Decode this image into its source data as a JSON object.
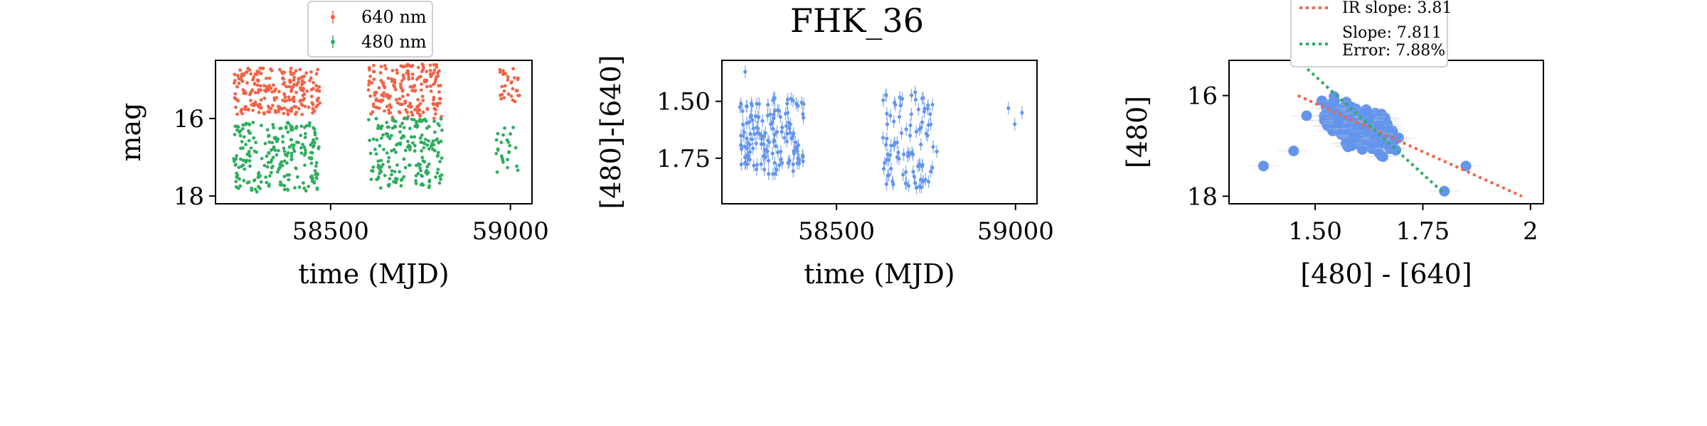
{
  "figure": {
    "title": "FHK_36"
  },
  "colors": {
    "red": "#f26347",
    "green": "#2fad5f",
    "blue": "#6495ed",
    "axis": "#000000"
  },
  "chart_data": [
    {
      "type": "scatter",
      "xlabel": "time (MJD)",
      "ylabel": "mag",
      "xlim": [
        58180,
        59060
      ],
      "ylim": [
        18.2,
        14.5
      ],
      "y_inverted": true,
      "xticks": [
        58500,
        59000
      ],
      "yticks": [
        16,
        18
      ],
      "legend_position": "top-center (outside axes)",
      "series": [
        {
          "name": "640 nm",
          "color": "#f26347",
          "clusters": [
            {
              "x_range": [
                58230,
                58470
              ],
              "y_range": [
                14.7,
                15.9
              ],
              "count": 230
            },
            {
              "x_range": [
                58605,
                58810
              ],
              "y_range": [
                14.6,
                16.0
              ],
              "count": 190
            },
            {
              "x_range": [
                58970,
                59025
              ],
              "y_range": [
                14.7,
                15.6
              ],
              "count": 30
            }
          ],
          "points": [
            [
              58455,
              15.8
            ],
            [
              58460,
              15.7
            ],
            [
              58470,
              15.6
            ]
          ]
        },
        {
          "name": "480 nm",
          "color": "#2fad5f",
          "clusters": [
            {
              "x_range": [
                58230,
                58470
              ],
              "y_range": [
                16.1,
                17.9
              ],
              "count": 230
            },
            {
              "x_range": [
                58605,
                58810
              ],
              "y_range": [
                16.0,
                17.8
              ],
              "count": 190
            },
            {
              "x_range": [
                58960,
                59025
              ],
              "y_range": [
                16.2,
                17.4
              ],
              "count": 25
            }
          ],
          "points": [
            [
              58235,
              16.2
            ],
            [
              58240,
              16.3
            ],
            [
              58735,
              16.2
            ]
          ]
        }
      ]
    },
    {
      "type": "scatter",
      "xlabel": "time (MJD)",
      "ylabel": "[480]-[640]",
      "xlim": [
        58180,
        59060
      ],
      "ylim": [
        1.95,
        1.32
      ],
      "y_inverted": true,
      "xticks": [
        58500,
        59000
      ],
      "yticks": [
        1.5,
        1.75
      ],
      "errorbars": true,
      "series": [
        {
          "color": "#6495ed",
          "clusters": [
            {
              "x_range": [
                58230,
                58410
              ],
              "y_range": [
                1.48,
                1.82
              ],
              "count": 150
            },
            {
              "x_range": [
                58630,
                58770
              ],
              "y_range": [
                1.47,
                1.88
              ],
              "count": 90
            }
          ],
          "points": [
            [
              58245,
              1.37
            ],
            [
              58980,
              1.53
            ],
            [
              58998,
              1.6
            ],
            [
              59018,
              1.55
            ],
            [
              58720,
              1.46
            ],
            [
              58770,
              1.7
            ],
            [
              58780,
              1.72
            ]
          ]
        }
      ]
    },
    {
      "type": "scatter",
      "xlabel": "[480] - [640]",
      "ylabel": "[480]",
      "xlim": [
        1.3,
        2.03
      ],
      "ylim": [
        18.15,
        15.3
      ],
      "y_inverted": true,
      "xticks": [
        1.5,
        1.75,
        2.0
      ],
      "yticks": [
        16,
        18
      ],
      "legend_position": "top-center (outside axes)",
      "series": [
        {
          "color": "#6495ed",
          "clusters": [
            {
              "x_center": 1.6,
              "x_spread": 0.13,
              "y_center": 16.6,
              "y_spread": 0.6,
              "slope": 4.5,
              "count": 200
            }
          ],
          "points": [
            [
              1.38,
              17.4
            ],
            [
              1.45,
              17.1
            ],
            [
              1.85,
              17.4
            ],
            [
              1.48,
              16.4
            ],
            [
              1.8,
              17.9
            ]
          ]
        }
      ],
      "lines": [
        {
          "name": "IR slope: 3.81",
          "color": "#f26347",
          "style": "dotted",
          "x": [
            1.46,
            1.98
          ],
          "y": [
            16.0,
            18.0
          ]
        },
        {
          "name": "Slope: 7.811\nError: 7.88%",
          "color": "#2fad5f",
          "style": "dotted",
          "x": [
            1.46,
            1.8
          ],
          "y": [
            15.3,
            17.95
          ]
        }
      ]
    }
  ]
}
